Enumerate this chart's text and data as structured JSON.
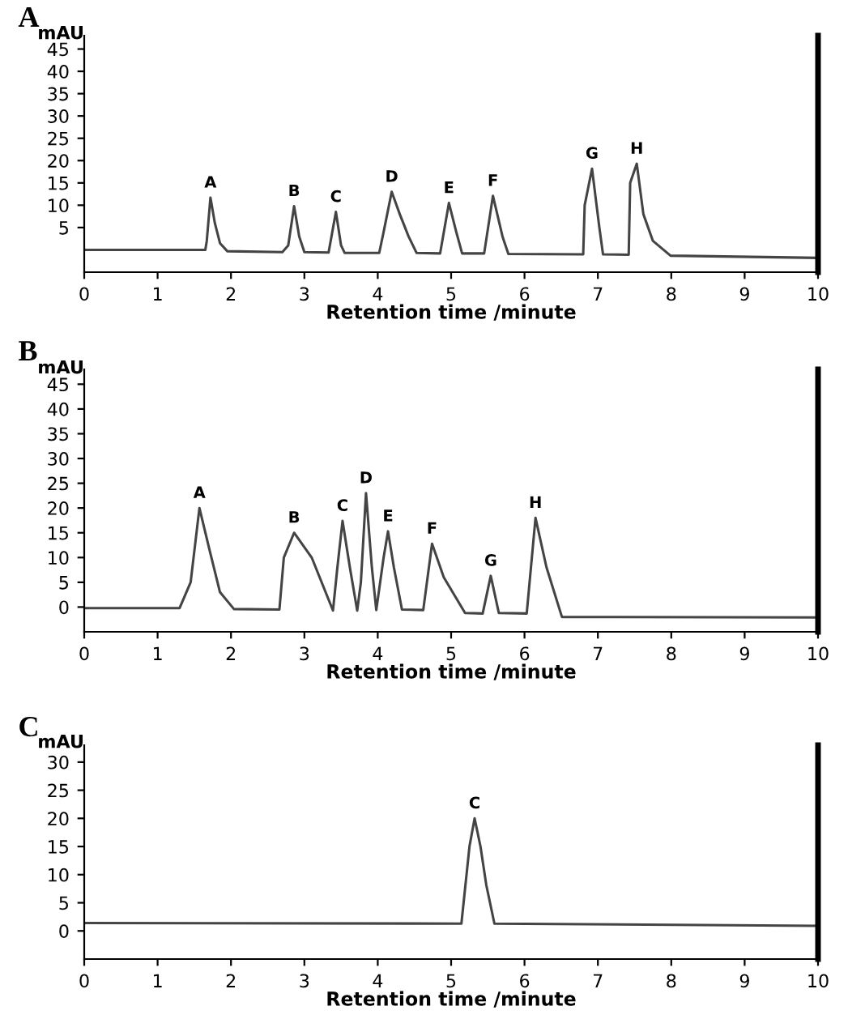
{
  "chart_data": [
    {
      "type": "line",
      "title": "A",
      "xlabel": "Retention time /minute",
      "ylabel": "mAU",
      "xlim": [
        0,
        10
      ],
      "ylim": [
        -5,
        48
      ],
      "xticks": [
        0,
        1,
        2,
        3,
        4,
        5,
        6,
        7,
        8,
        9,
        10
      ],
      "yticks": [
        5,
        10,
        15,
        20,
        25,
        30,
        35,
        40,
        45
      ],
      "grid": false,
      "marker": "none",
      "line_style": "solid",
      "series": [
        {
          "color": "#444444",
          "x": [
            0,
            1.65,
            1.67,
            1.72,
            1.78,
            1.85,
            1.95,
            2.7,
            2.78,
            2.86,
            2.93,
            3.0,
            3.33,
            3.43,
            3.5,
            3.55,
            4.02,
            4.08,
            4.19,
            4.3,
            4.42,
            4.53,
            4.85,
            4.97,
            5.07,
            5.15,
            5.45,
            5.57,
            5.7,
            5.78,
            6.8,
            6.82,
            6.92,
            7.02,
            7.07,
            7.42,
            7.44,
            7.53,
            7.62,
            7.75,
            7.99,
            10
          ],
          "values": [
            0,
            0,
            2,
            11.7,
            6,
            1.5,
            -0.3,
            -0.5,
            1,
            9.8,
            3,
            -0.5,
            -0.6,
            8.5,
            1,
            -0.7,
            -0.7,
            4,
            13.0,
            8,
            3,
            -0.7,
            -0.8,
            10.5,
            4,
            -0.8,
            -0.8,
            12.1,
            3,
            -0.9,
            -1,
            10,
            18.2,
            5,
            -1,
            -1.1,
            15,
            19.3,
            8,
            2,
            -1.3,
            -1.8
          ]
        }
      ],
      "annotations": [
        {
          "text": "A",
          "x": 1.72,
          "y": 11.7
        },
        {
          "text": "B",
          "x": 2.86,
          "y": 9.8
        },
        {
          "text": "C",
          "x": 3.43,
          "y": 8.5
        },
        {
          "text": "D",
          "x": 4.19,
          "y": 13.0
        },
        {
          "text": "E",
          "x": 4.97,
          "y": 10.5
        },
        {
          "text": "F",
          "x": 5.57,
          "y": 12.1
        },
        {
          "text": "G",
          "x": 6.92,
          "y": 18.2
        },
        {
          "text": "H",
          "x": 7.53,
          "y": 19.3
        }
      ]
    },
    {
      "type": "line",
      "title": "B",
      "xlabel": "Retention time /minute",
      "ylabel": "mAU",
      "xlim": [
        0,
        10
      ],
      "ylim": [
        -5,
        48
      ],
      "xticks": [
        0,
        1,
        2,
        3,
        4,
        5,
        6,
        7,
        8,
        9,
        10
      ],
      "yticks": [
        0,
        5,
        10,
        15,
        20,
        25,
        30,
        35,
        40,
        45
      ],
      "grid": false,
      "marker": "none",
      "line_style": "solid",
      "series": [
        {
          "color": "#444444",
          "x": [
            0,
            1.3,
            1.45,
            1.57,
            1.7,
            1.85,
            2.04,
            2.66,
            2.72,
            2.86,
            3.1,
            3.39,
            3.45,
            3.52,
            3.62,
            3.72,
            3.77,
            3.84,
            3.92,
            3.98,
            4.08,
            4.14,
            4.22,
            4.33,
            4.62,
            4.74,
            4.9,
            5.19,
            5.43,
            5.54,
            5.65,
            6.03,
            6.15,
            6.3,
            6.51,
            10
          ],
          "values": [
            -0.2,
            -0.2,
            5,
            20,
            12,
            3,
            -0.4,
            -0.5,
            10,
            15,
            10,
            -0.7,
            8,
            17.4,
            8,
            -0.7,
            5,
            23,
            8,
            -0.6,
            10,
            15.3,
            8,
            -0.5,
            -0.6,
            12.8,
            6,
            -1.2,
            -1.3,
            6.3,
            -1.2,
            -1.3,
            18,
            8,
            -2,
            -2.1
          ]
        }
      ],
      "annotations": [
        {
          "text": "A",
          "x": 1.57,
          "y": 20
        },
        {
          "text": "B",
          "x": 2.86,
          "y": 15
        },
        {
          "text": "C",
          "x": 3.52,
          "y": 17.4
        },
        {
          "text": "D",
          "x": 3.84,
          "y": 23
        },
        {
          "text": "E",
          "x": 4.14,
          "y": 15.3
        },
        {
          "text": "F",
          "x": 4.74,
          "y": 12.8
        },
        {
          "text": "G",
          "x": 5.54,
          "y": 6.3
        },
        {
          "text": "H",
          "x": 6.15,
          "y": 18
        }
      ]
    },
    {
      "type": "line",
      "title": "C",
      "xlabel": "Retention time /minute",
      "ylabel": "mAU",
      "xlim": [
        0,
        10
      ],
      "ylim": [
        -5,
        33
      ],
      "xticks": [
        0,
        1,
        2,
        3,
        4,
        5,
        6,
        7,
        8,
        9,
        10
      ],
      "yticks": [
        0,
        5,
        10,
        15,
        20,
        25,
        30
      ],
      "grid": false,
      "marker": "none",
      "line_style": "solid",
      "series": [
        {
          "color": "#444444",
          "x": [
            0,
            5.14,
            5.25,
            5.32,
            5.4,
            5.48,
            5.59,
            10
          ],
          "values": [
            1.4,
            1.3,
            15,
            20,
            15,
            8.1,
            1.3,
            0.9
          ]
        }
      ],
      "annotations": [
        {
          "text": "C",
          "x": 5.32,
          "y": 20
        }
      ]
    }
  ]
}
